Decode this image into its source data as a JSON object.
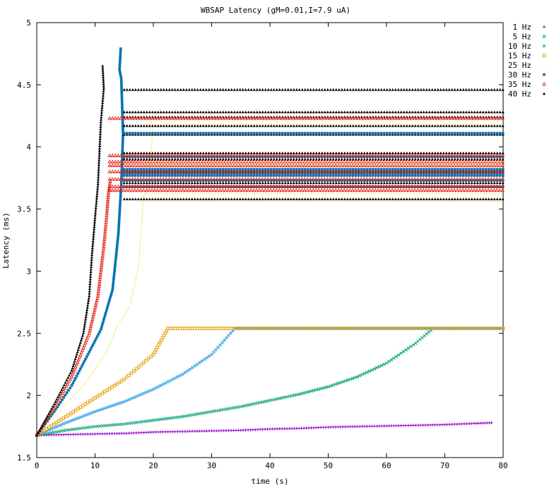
{
  "chart_data": {
    "type": "scatter",
    "title": "WBSAP Latency (gM=0.01,I=7.9 uA)",
    "xlabel": "time (s)",
    "ylabel": "Latency (ms)",
    "xlim": [
      0,
      80
    ],
    "ylim": [
      1.5,
      5
    ],
    "xticks": [
      "0",
      "10",
      "20",
      "30",
      "40",
      "50",
      "60",
      "70",
      "80"
    ],
    "yticks": [
      "1.5",
      "2",
      "2.5",
      "3",
      "3.5",
      "4",
      "4.5",
      "5"
    ],
    "grid": false,
    "legend_position": "right",
    "series": [
      {
        "name": "1 Hz",
        "color": "#9400d3",
        "marker": "plus",
        "points": [
          [
            0,
            1.68
          ],
          [
            5,
            1.685
          ],
          [
            10,
            1.69
          ],
          [
            15,
            1.695
          ],
          [
            20,
            1.705
          ],
          [
            25,
            1.71
          ],
          [
            30,
            1.715
          ],
          [
            35,
            1.72
          ],
          [
            40,
            1.73
          ],
          [
            45,
            1.735
          ],
          [
            50,
            1.745
          ],
          [
            55,
            1.75
          ],
          [
            60,
            1.755
          ],
          [
            65,
            1.76
          ],
          [
            70,
            1.765
          ],
          [
            75,
            1.775
          ],
          [
            78,
            1.78
          ]
        ]
      },
      {
        "name": "5 Hz",
        "color": "#009e73",
        "marker": "cross",
        "points": [
          [
            0,
            1.68
          ],
          [
            5,
            1.72
          ],
          [
            10,
            1.75
          ],
          [
            15,
            1.77
          ],
          [
            20,
            1.8
          ],
          [
            25,
            1.83
          ],
          [
            30,
            1.87
          ],
          [
            35,
            1.91
          ],
          [
            40,
            1.96
          ],
          [
            45,
            2.01
          ],
          [
            50,
            2.07
          ],
          [
            55,
            2.15
          ],
          [
            60,
            2.26
          ],
          [
            65,
            2.42
          ],
          [
            68,
            2.54
          ],
          [
            70,
            2.54
          ],
          [
            80,
            2.54
          ]
        ]
      },
      {
        "name": "10 Hz",
        "color": "#56b4e9",
        "marker": "star",
        "points": [
          [
            0,
            1.68
          ],
          [
            5,
            1.78
          ],
          [
            10,
            1.87
          ],
          [
            15,
            1.95
          ],
          [
            20,
            2.05
          ],
          [
            25,
            2.17
          ],
          [
            30,
            2.33
          ],
          [
            34,
            2.54
          ],
          [
            40,
            2.54
          ],
          [
            50,
            2.54
          ],
          [
            60,
            2.54
          ],
          [
            70,
            2.54
          ],
          [
            80,
            2.54
          ]
        ]
      },
      {
        "name": "15 Hz",
        "color": "#e69f00",
        "marker": "box",
        "points": [
          [
            0,
            1.68
          ],
          [
            5,
            1.83
          ],
          [
            10,
            1.98
          ],
          [
            15,
            2.13
          ],
          [
            20,
            2.33
          ],
          [
            22.5,
            2.54
          ],
          [
            30,
            2.54
          ],
          [
            40,
            2.54
          ],
          [
            50,
            2.54
          ],
          [
            60,
            2.54
          ],
          [
            70,
            2.54
          ],
          [
            80,
            2.54
          ]
        ]
      },
      {
        "name": "25 Hz",
        "color": "#f0e442",
        "marker": "dot",
        "points": [
          [
            0,
            1.68
          ],
          [
            4,
            1.88
          ],
          [
            8,
            2.08
          ],
          [
            12,
            2.35
          ],
          [
            14,
            2.57
          ],
          [
            16,
            2.72
          ],
          [
            17.5,
            3.05
          ],
          [
            18.3,
            3.6
          ],
          [
            19,
            3.65
          ],
          [
            20,
            4.18
          ]
        ]
      },
      {
        "name": "30 Hz",
        "color": "#0072b2",
        "marker": "boxfill",
        "points": [
          [
            0,
            1.68
          ],
          [
            3,
            1.87
          ],
          [
            6,
            2.08
          ],
          [
            9,
            2.35
          ],
          [
            11,
            2.53
          ],
          [
            13,
            2.85
          ],
          [
            14,
            3.3
          ],
          [
            14.5,
            3.7
          ],
          [
            14.8,
            4.11
          ],
          [
            14.5,
            4.55
          ],
          [
            14.2,
            4.62
          ],
          [
            14.4,
            4.79
          ]
        ]
      },
      {
        "name": "35 Hz",
        "color": "#e51e10",
        "marker": "tri",
        "points": [
          [
            0,
            1.68
          ],
          [
            3,
            1.9
          ],
          [
            6,
            2.15
          ],
          [
            9,
            2.5
          ],
          [
            10.5,
            2.8
          ],
          [
            11.5,
            3.2
          ],
          [
            12,
            3.45
          ],
          [
            12.3,
            3.63
          ],
          [
            12.6,
            3.72
          ]
        ]
      },
      {
        "name": "40 Hz",
        "color": "#000000",
        "marker": "trifill",
        "points": [
          [
            0,
            1.68
          ],
          [
            3,
            1.93
          ],
          [
            6,
            2.2
          ],
          [
            8,
            2.5
          ],
          [
            9,
            2.8
          ],
          [
            9.5,
            3.15
          ],
          [
            10,
            3.43
          ],
          [
            10.5,
            3.7
          ],
          [
            11,
            4.2
          ],
          [
            11.5,
            4.47
          ],
          [
            11.3,
            4.65
          ]
        ]
      }
    ],
    "plateau_levels": [
      {
        "name": "40 Hz",
        "color": "#000000",
        "marker": "trifill",
        "x_start": 15,
        "x_end": 80,
        "levels": [
          3.58,
          3.71,
          3.81,
          3.9,
          3.95,
          4.1,
          4.17,
          4.24,
          4.28,
          4.46
        ]
      },
      {
        "name": "30 Hz",
        "color": "#0072b2",
        "marker": "boxfill",
        "x_start": 15,
        "x_end": 80,
        "levels": [
          3.68,
          3.73,
          3.77,
          3.79,
          3.82,
          3.92,
          4.11
        ]
      },
      {
        "name": "35 Hz",
        "color": "#e51e10",
        "marker": "tri",
        "x_start": 12.5,
        "x_end": 80,
        "levels": [
          3.65,
          3.68,
          3.74,
          3.8,
          3.85,
          3.88,
          3.93,
          4.23
        ]
      },
      {
        "name": "25 Hz",
        "color": "#f0e442",
        "marker": "dot",
        "x_start": 18,
        "x_end": 80,
        "levels": [
          3.56,
          3.62,
          3.88,
          4.18
        ]
      }
    ]
  }
}
